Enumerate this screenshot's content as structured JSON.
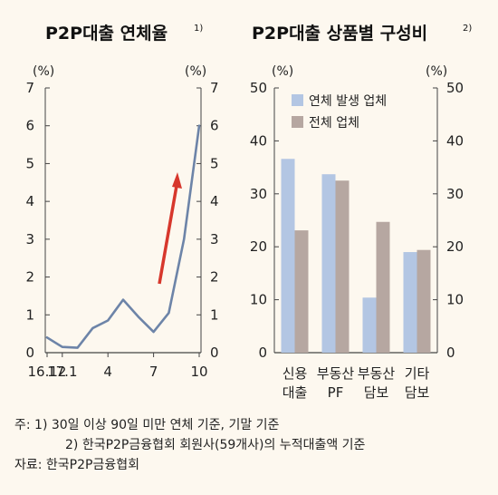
{
  "colors": {
    "background": "#fdf8ef",
    "line": "#6d84a8",
    "arrow": "#d7372c",
    "series_a": "#b3c6e3",
    "series_b": "#b6a7a1",
    "axis": "#444444"
  },
  "notes": {
    "note1": "주: 1) 30일 이상 90일 미만 연체 기준, 기말 기준",
    "note2": "2) 한국P2P금융협회 회원사(59개사)의 누적대출액 기준",
    "source": "자료: 한국P2P금융협회"
  },
  "chart_data": [
    {
      "type": "line",
      "title": "P2P대출 연체율",
      "title_sup": "1)",
      "unit_left": "(%)",
      "unit_right": "(%)",
      "ylim": [
        0,
        7
      ],
      "yticks": [
        "0",
        "1",
        "2",
        "3",
        "4",
        "5",
        "6",
        "7"
      ],
      "xtick_labels": [
        "16.12",
        "17.1",
        "4",
        "7",
        "10"
      ],
      "xtick_indices": [
        0,
        1,
        4,
        7,
        10
      ],
      "x": [
        "16.12",
        "17.1",
        "17.2",
        "17.3",
        "17.4",
        "17.5",
        "17.6",
        "17.7",
        "17.8",
        "17.9",
        "17.10"
      ],
      "series": [
        {
          "values": [
            0.4,
            0.15,
            0.13,
            0.65,
            0.85,
            1.4,
            0.95,
            0.55,
            1.05,
            3.0,
            6.0
          ]
        }
      ],
      "annotation": "upward-arrow",
      "grid": false
    },
    {
      "type": "bar",
      "title": "P2P대출 상품별 구성비",
      "title_sup": "2)",
      "unit_left": "(%)",
      "unit_right": "(%)",
      "ylim": [
        0,
        50
      ],
      "yticks": [
        "0",
        "10",
        "20",
        "30",
        "40",
        "50"
      ],
      "categories": [
        {
          "line1": "신용",
          "line2": "대출"
        },
        {
          "line1": "부동산",
          "line2": "PF"
        },
        {
          "line1": "부동산",
          "line2": "담보"
        },
        {
          "line1": "기타",
          "line2": "담보"
        }
      ],
      "series": [
        {
          "name": "연체 발생 업체",
          "values": [
            36.6,
            33.7,
            10.4,
            19.0
          ]
        },
        {
          "name": "전체 업체",
          "values": [
            23.1,
            32.5,
            24.7,
            19.4
          ]
        }
      ],
      "legend": "top-left",
      "grid": false
    }
  ]
}
